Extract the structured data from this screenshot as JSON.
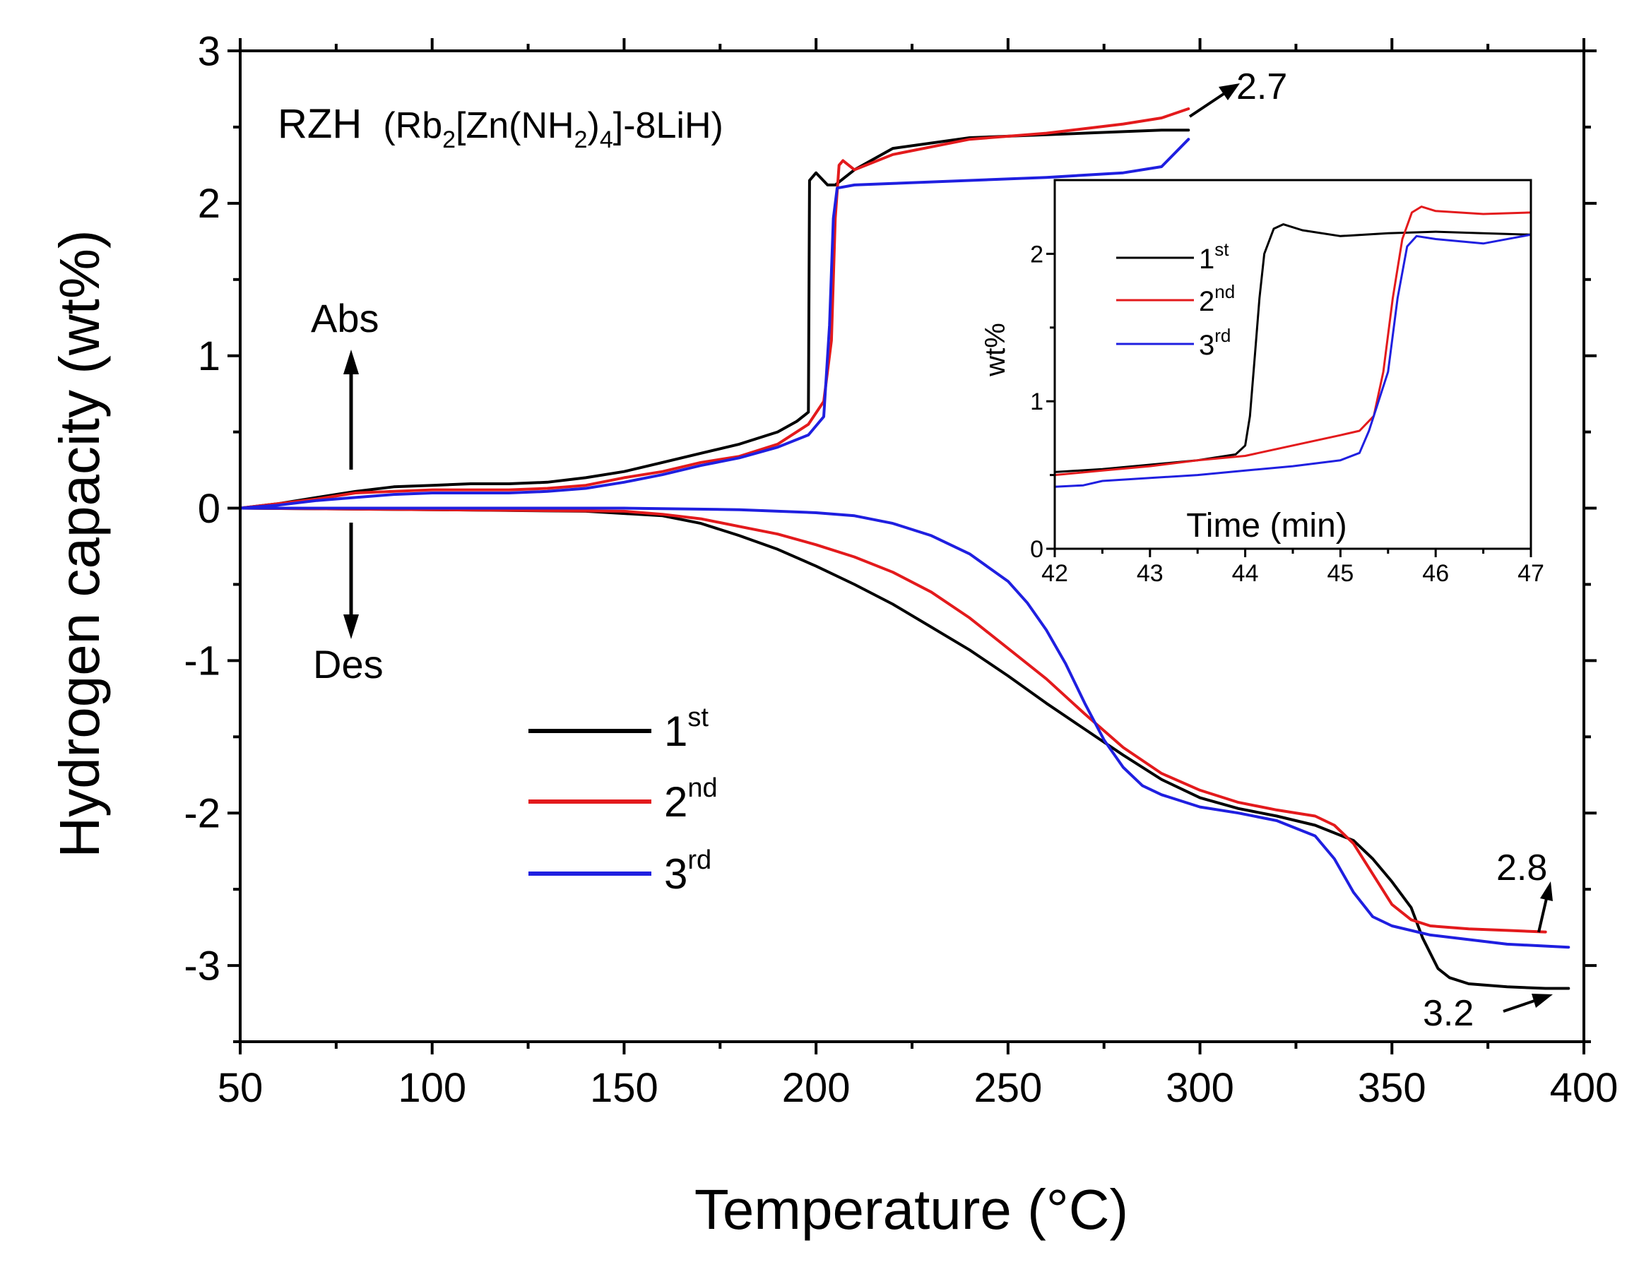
{
  "chart_data": [
    {
      "type": "line",
      "title": "RZH",
      "title_formula": "Rb2[Zn(NH2)4]-8LiH",
      "formula_parts": [
        "(Rb",
        "2",
        "[Zn(NH",
        "2",
        ")",
        "4",
        "]-8LiH)"
      ],
      "xlabel": "Temperature (°C)",
      "ylabel": "Hydrogen capacity (wt%)",
      "xlim": [
        50,
        400
      ],
      "ylim": [
        -3.5,
        3
      ],
      "xticks": [
        50,
        100,
        150,
        200,
        250,
        300,
        350,
        400
      ],
      "yticks": [
        -3,
        -2,
        -1,
        0,
        1,
        2,
        3
      ],
      "x_tick_labels": [
        "50",
        "100",
        "150",
        "200",
        "250",
        "300",
        "350",
        "400"
      ],
      "y_tick_labels": [
        "-3",
        "-2",
        "-1",
        "0",
        "1",
        "2",
        "3"
      ],
      "legend": {
        "position": "lower-left",
        "entries": [
          {
            "base": "1",
            "sup": "st"
          },
          {
            "base": "2",
            "sup": "nd"
          },
          {
            "base": "3",
            "sup": "rd"
          }
        ]
      },
      "annotations": {
        "abs": "Abs",
        "des": "Des",
        "abs_max": "2.7",
        "des_23": "2.8",
        "des_1": "3.2"
      },
      "series": [
        {
          "name": "1st absorption",
          "color": "#000000",
          "x": [
            50,
            60,
            70,
            80,
            90,
            100,
            110,
            120,
            130,
            140,
            150,
            160,
            170,
            180,
            190,
            195,
            198,
            198.3,
            200,
            203,
            205,
            210,
            220,
            240,
            260,
            280,
            290,
            297
          ],
          "y": [
            0,
            0.03,
            0.07,
            0.11,
            0.14,
            0.15,
            0.16,
            0.16,
            0.17,
            0.2,
            0.24,
            0.3,
            0.36,
            0.42,
            0.5,
            0.57,
            0.63,
            2.15,
            2.2,
            2.12,
            2.12,
            2.22,
            2.36,
            2.43,
            2.45,
            2.47,
            2.48,
            2.48
          ]
        },
        {
          "name": "2nd absorption",
          "color": "#e31a1c",
          "x": [
            50,
            60,
            70,
            80,
            90,
            100,
            110,
            120,
            130,
            140,
            150,
            160,
            170,
            180,
            190,
            198,
            202,
            204,
            205,
            206,
            207,
            210,
            220,
            240,
            260,
            280,
            290,
            297
          ],
          "y": [
            0,
            0.03,
            0.06,
            0.1,
            0.11,
            0.12,
            0.12,
            0.12,
            0.13,
            0.15,
            0.2,
            0.24,
            0.3,
            0.34,
            0.42,
            0.55,
            0.7,
            1.1,
            1.9,
            2.25,
            2.28,
            2.22,
            2.32,
            2.42,
            2.46,
            2.52,
            2.56,
            2.62
          ]
        },
        {
          "name": "3rd absorption",
          "color": "#1f1fe0",
          "x": [
            50,
            60,
            70,
            80,
            90,
            100,
            110,
            120,
            130,
            140,
            150,
            160,
            170,
            180,
            190,
            198,
            202,
            203.5,
            204.5,
            205.5,
            210,
            220,
            240,
            260,
            280,
            290,
            297
          ],
          "y": [
            0,
            0.02,
            0.05,
            0.07,
            0.09,
            0.1,
            0.1,
            0.1,
            0.11,
            0.13,
            0.17,
            0.22,
            0.28,
            0.33,
            0.4,
            0.48,
            0.6,
            1.2,
            1.9,
            2.1,
            2.12,
            2.13,
            2.15,
            2.17,
            2.2,
            2.24,
            2.42
          ]
        },
        {
          "name": "1st desorption",
          "color": "#000000",
          "x": [
            50,
            100,
            140,
            160,
            170,
            180,
            190,
            200,
            210,
            220,
            230,
            240,
            250,
            260,
            270,
            280,
            290,
            300,
            310,
            320,
            330,
            340,
            345,
            350,
            355,
            358,
            362,
            365,
            370,
            380,
            390,
            396
          ],
          "y": [
            0,
            -0.01,
            -0.02,
            -0.05,
            -0.1,
            -0.18,
            -0.27,
            -0.38,
            -0.5,
            -0.63,
            -0.78,
            -0.93,
            -1.1,
            -1.28,
            -1.45,
            -1.62,
            -1.78,
            -1.9,
            -1.97,
            -2.02,
            -2.08,
            -2.18,
            -2.3,
            -2.45,
            -2.62,
            -2.82,
            -3.02,
            -3.08,
            -3.12,
            -3.14,
            -3.15,
            -3.15
          ]
        },
        {
          "name": "2nd desorption",
          "color": "#e31a1c",
          "x": [
            50,
            100,
            150,
            160,
            170,
            180,
            190,
            200,
            210,
            220,
            230,
            240,
            250,
            260,
            270,
            280,
            290,
            300,
            310,
            320,
            330,
            335,
            340,
            345,
            350,
            355,
            360,
            370,
            380,
            390
          ],
          "y": [
            0,
            -0.01,
            -0.02,
            -0.04,
            -0.07,
            -0.12,
            -0.17,
            -0.24,
            -0.32,
            -0.42,
            -0.55,
            -0.72,
            -0.92,
            -1.12,
            -1.35,
            -1.57,
            -1.74,
            -1.85,
            -1.93,
            -1.98,
            -2.02,
            -2.08,
            -2.2,
            -2.4,
            -2.6,
            -2.7,
            -2.74,
            -2.76,
            -2.77,
            -2.78
          ]
        },
        {
          "name": "3rd desorption",
          "color": "#1f1fe0",
          "x": [
            50,
            100,
            150,
            180,
            200,
            210,
            220,
            230,
            240,
            250,
            255,
            260,
            265,
            270,
            275,
            280,
            285,
            290,
            300,
            310,
            320,
            330,
            335,
            340,
            345,
            350,
            360,
            370,
            380,
            396
          ],
          "y": [
            0,
            0,
            0,
            -0.01,
            -0.03,
            -0.05,
            -0.1,
            -0.18,
            -0.3,
            -0.48,
            -0.62,
            -0.8,
            -1.02,
            -1.28,
            -1.52,
            -1.7,
            -1.82,
            -1.88,
            -1.96,
            -2.0,
            -2.05,
            -2.15,
            -2.3,
            -2.52,
            -2.68,
            -2.74,
            -2.8,
            -2.83,
            -2.86,
            -2.88
          ]
        }
      ]
    },
    {
      "type": "line",
      "title": "",
      "xlabel": "Time (min)",
      "ylabel": "wt%",
      "xlim": [
        42,
        47
      ],
      "ylim": [
        0,
        2.5
      ],
      "xticks": [
        42,
        43,
        44,
        45,
        46,
        47
      ],
      "yticks": [
        0,
        1,
        2
      ],
      "x_tick_labels": [
        "42",
        "43",
        "44",
        "45",
        "46",
        "47"
      ],
      "y_tick_labels": [
        "0",
        "1",
        "2"
      ],
      "legend": {
        "position": "top-left",
        "entries": [
          {
            "base": "1",
            "sup": "st"
          },
          {
            "base": "2",
            "sup": "nd"
          },
          {
            "base": "3",
            "sup": "rd"
          }
        ]
      },
      "series": [
        {
          "name": "1st",
          "color": "#000000",
          "x": [
            42,
            42.5,
            43,
            43.5,
            43.9,
            44.0,
            44.05,
            44.1,
            44.15,
            44.2,
            44.3,
            44.4,
            44.6,
            45,
            45.5,
            46,
            46.5,
            47
          ],
          "y": [
            0.52,
            0.54,
            0.57,
            0.6,
            0.64,
            0.7,
            0.9,
            1.3,
            1.7,
            2.0,
            2.17,
            2.2,
            2.16,
            2.12,
            2.14,
            2.15,
            2.14,
            2.13
          ]
        },
        {
          "name": "2nd",
          "color": "#e31a1c",
          "x": [
            42,
            42.5,
            43,
            43.5,
            44,
            44.5,
            45,
            45.2,
            45.35,
            45.45,
            45.55,
            45.65,
            45.75,
            45.85,
            46,
            46.5,
            47
          ],
          "y": [
            0.5,
            0.53,
            0.56,
            0.6,
            0.63,
            0.7,
            0.77,
            0.8,
            0.9,
            1.2,
            1.7,
            2.1,
            2.28,
            2.32,
            2.29,
            2.27,
            2.28
          ]
        },
        {
          "name": "3rd",
          "color": "#1f1fe0",
          "x": [
            42,
            42.3,
            42.5,
            43,
            43.5,
            44,
            44.5,
            45,
            45.2,
            45.3,
            45.4,
            45.5,
            45.6,
            45.7,
            45.8,
            46,
            46.5,
            47
          ],
          "y": [
            0.42,
            0.43,
            0.46,
            0.48,
            0.5,
            0.53,
            0.56,
            0.6,
            0.65,
            0.8,
            1.0,
            1.2,
            1.7,
            2.05,
            2.12,
            2.1,
            2.07,
            2.13
          ]
        }
      ]
    }
  ]
}
